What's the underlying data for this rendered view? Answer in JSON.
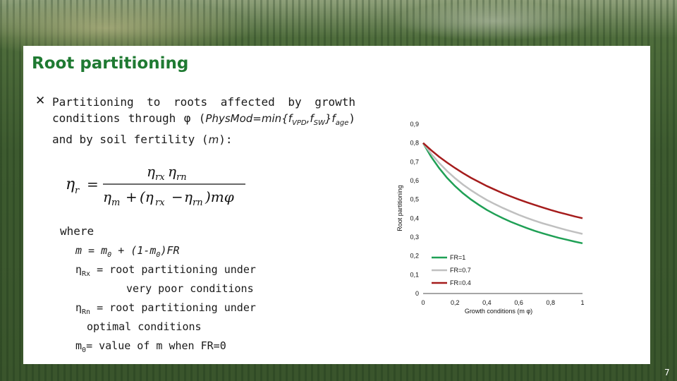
{
  "slide": {
    "title": "Root partitioning",
    "bullet_marker": "✕",
    "bullet": {
      "part1": "Partitioning to roots affected by growth conditions through φ (",
      "physmod": "PhysMod=min{f",
      "sub_vpd": "VPD",
      "comma1": ",f",
      "sub_sw": "SW",
      "close": "}f",
      "sub_age": "age",
      "part2": ") and by soil fertility (",
      "m": "m",
      "part3": "):"
    },
    "formula": {
      "lhs": "η",
      "lhs_sub": "r",
      "num_a": "η",
      "num_a_sub": "rx",
      "num_b": "η",
      "num_b_sub": "rn",
      "den_a": "η",
      "den_a_sub": "m",
      "den_plus": "+",
      "den_b": "(η",
      "den_b_sub": "rx",
      "den_minus": "−",
      "den_c": "η",
      "den_c_sub": "rn",
      "den_tail": ")mφ",
      "eq": "="
    },
    "where": "where",
    "definitions": {
      "m_line": {
        "a": "m = m",
        "sub": "0",
        "b": " + (1-m",
        "sub2": "0",
        "c": ")FR"
      },
      "rx_line": {
        "sym": "η",
        "sub": "Rx",
        "text": " = root partitioning under",
        "cont": "very poor conditions"
      },
      "rn_line": {
        "sym": "η",
        "sub": "Rn",
        "text": " = root partitioning under",
        "cont": "optimal conditions"
      },
      "m0_line": {
        "a": "m",
        "sub": "0",
        "b": "= value of m when FR=0"
      }
    },
    "page_number": "7"
  },
  "chart_data": {
    "type": "line",
    "xlabel": "Growth conditions (m φ)",
    "ylabel": "Root partitioning",
    "xlim": [
      0,
      1
    ],
    "ylim": [
      0,
      0.9
    ],
    "x_ticks": [
      "0",
      "0,2",
      "0,4",
      "0,6",
      "0,8",
      "1"
    ],
    "y_ticks": [
      "0",
      "0,1",
      "0,2",
      "0,3",
      "0,4",
      "0,5",
      "0,6",
      "0,7",
      "0,8",
      "0,9"
    ],
    "grid": false,
    "legend_position": "bottom-left",
    "x": [
      0,
      0.05,
      0.1,
      0.15,
      0.2,
      0.25,
      0.3,
      0.35,
      0.4,
      0.45,
      0.5,
      0.55,
      0.6,
      0.65,
      0.7,
      0.75,
      0.8,
      0.85,
      0.9,
      0.95,
      1.0
    ],
    "series": [
      {
        "name": "FR=1",
        "color": "#1fa055",
        "values": [
          0.8,
          0.727,
          0.667,
          0.615,
          0.571,
          0.533,
          0.5,
          0.471,
          0.444,
          0.421,
          0.4,
          0.381,
          0.364,
          0.348,
          0.333,
          0.32,
          0.308,
          0.296,
          0.286,
          0.276,
          0.267
        ]
      },
      {
        "name": "FR=0.7",
        "color": "#c0c0c0",
        "values": [
          0.8,
          0.743,
          0.694,
          0.651,
          0.613,
          0.579,
          0.549,
          0.522,
          0.497,
          0.475,
          0.455,
          0.436,
          0.418,
          0.402,
          0.387,
          0.373,
          0.361,
          0.349,
          0.337,
          0.327,
          0.317
        ]
      },
      {
        "name": "FR=0.4",
        "color": "#a51c1c",
        "values": [
          0.8,
          0.762,
          0.727,
          0.696,
          0.667,
          0.64,
          0.615,
          0.593,
          0.571,
          0.552,
          0.533,
          0.516,
          0.5,
          0.485,
          0.471,
          0.457,
          0.444,
          0.432,
          0.421,
          0.41,
          0.4
        ]
      }
    ]
  }
}
